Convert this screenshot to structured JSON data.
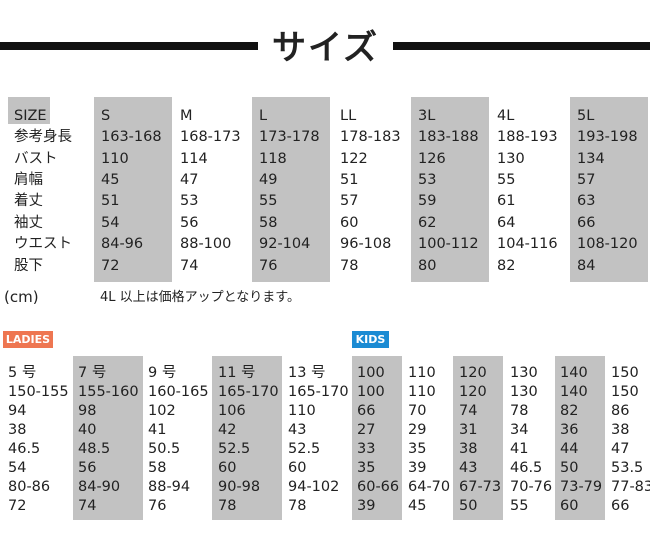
{
  "title": "サイズ",
  "mens": {
    "header_label": "SIZE",
    "row_labels": [
      "参考身長",
      "バスト",
      "肩幅",
      "着丈",
      "袖丈",
      "ウエスト",
      "股下"
    ],
    "columns": [
      {
        "size": "S",
        "values": [
          "163-168",
          "110",
          "45",
          "51",
          "54",
          "84-96",
          "72"
        ]
      },
      {
        "size": "M",
        "values": [
          "168-173",
          "114",
          "47",
          "53",
          "56",
          "88-100",
          "74"
        ]
      },
      {
        "size": "L",
        "values": [
          "173-178",
          "118",
          "49",
          "55",
          "58",
          "92-104",
          "76"
        ]
      },
      {
        "size": "LL",
        "values": [
          "178-183",
          "122",
          "51",
          "57",
          "60",
          "96-108",
          "78"
        ]
      },
      {
        "size": "3L",
        "values": [
          "183-188",
          "126",
          "53",
          "59",
          "62",
          "100-112",
          "80"
        ]
      },
      {
        "size": "4L",
        "values": [
          "188-193",
          "130",
          "55",
          "61",
          "64",
          "104-116",
          "82"
        ]
      },
      {
        "size": "5L",
        "values": [
          "193-198",
          "134",
          "57",
          "63",
          "66",
          "108-120",
          "84"
        ]
      }
    ],
    "unit_note": "(cm)",
    "price_note": "4L 以上は価格アップとなります。"
  },
  "ladies": {
    "badge": "LADIES",
    "badge_color": "#ee7651",
    "columns": [
      {
        "size": "5 号",
        "values": [
          "150-155",
          "94",
          "38",
          "46.5",
          "54",
          "80-86",
          "72"
        ]
      },
      {
        "size": "7 号",
        "values": [
          "155-160",
          "98",
          "40",
          "48.5",
          "56",
          "84-90",
          "74"
        ]
      },
      {
        "size": "9 号",
        "values": [
          "160-165",
          "102",
          "41",
          "50.5",
          "58",
          "88-94",
          "76"
        ]
      },
      {
        "size": "11 号",
        "values": [
          "165-170",
          "106",
          "42",
          "52.5",
          "60",
          "90-98",
          "78"
        ]
      },
      {
        "size": "13 号",
        "values": [
          "165-170",
          "110",
          "43",
          "52.5",
          "60",
          "94-102",
          "78"
        ]
      }
    ]
  },
  "kids": {
    "badge": "KIDS",
    "badge_color": "#1b8bd3",
    "columns": [
      {
        "size": "100",
        "values": [
          "100",
          "66",
          "27",
          "33",
          "35",
          "60-66",
          "39"
        ]
      },
      {
        "size": "110",
        "values": [
          "110",
          "70",
          "29",
          "35",
          "39",
          "64-70",
          "45"
        ]
      },
      {
        "size": "120",
        "values": [
          "120",
          "74",
          "31",
          "38",
          "43",
          "67-73",
          "50"
        ]
      },
      {
        "size": "130",
        "values": [
          "130",
          "78",
          "34",
          "41",
          "46.5",
          "70-76",
          "55"
        ]
      },
      {
        "size": "140",
        "values": [
          "140",
          "82",
          "36",
          "44",
          "50",
          "73-79",
          "60"
        ]
      },
      {
        "size": "150",
        "values": [
          "150",
          "86",
          "38",
          "47",
          "53.5",
          "77-83",
          "66"
        ]
      }
    ]
  },
  "shade_color": "#c2c2c2"
}
